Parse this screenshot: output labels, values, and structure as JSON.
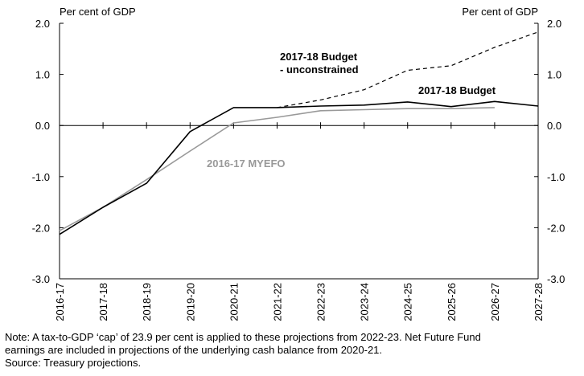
{
  "chart_data": {
    "type": "line",
    "title": "",
    "left_axis_label": "Per cent of GDP",
    "right_axis_label": "Per cent of GDP",
    "ylim": [
      -3.0,
      2.0
    ],
    "yticks": [
      "2.0",
      "1.0",
      "0.0",
      "-1.0",
      "-2.0",
      "-3.0"
    ],
    "ytick_values": [
      2.0,
      1.0,
      0.0,
      -1.0,
      -2.0,
      -3.0
    ],
    "categories": [
      "2016-17",
      "2017-18",
      "2018-19",
      "2019-20",
      "2020-21",
      "2021-22",
      "2022-23",
      "2023-24",
      "2024-25",
      "2025-26",
      "2026-27",
      "2027-28"
    ],
    "series": [
      {
        "name": "2017-18 Budget - unconstrained",
        "label_lines": [
          "2017-18 Budget",
          "- unconstrained"
        ],
        "style": "dashed",
        "color": "#000000",
        "values": [
          null,
          null,
          null,
          null,
          null,
          0.35,
          0.5,
          0.7,
          1.08,
          1.17,
          1.53,
          1.83
        ]
      },
      {
        "name": "2016-17 MYEFO",
        "label_lines": [
          "2016-17 MYEFO"
        ],
        "style": "solid",
        "color": "#999999",
        "values": [
          -2.06,
          -1.6,
          -1.06,
          -0.5,
          0.05,
          0.16,
          0.29,
          0.31,
          0.33,
          0.33,
          0.35,
          null
        ]
      },
      {
        "name": "2017-18 Budget",
        "label_lines": [
          "2017-18 Budget"
        ],
        "style": "solid",
        "color": "#000000",
        "values": [
          -2.13,
          -1.6,
          -1.13,
          -0.12,
          0.35,
          0.35,
          0.38,
          0.4,
          0.46,
          0.37,
          0.47,
          0.38
        ]
      }
    ]
  },
  "notes": {
    "line1": "Note: A tax-to-GDP ‘cap’ of 23.9 per cent is applied to these projections from 2022-23. Net Future Fund",
    "line2": "earnings are included in projections of the underlying cash balance from 2020-21.",
    "source": "Source: Treasury projections."
  }
}
